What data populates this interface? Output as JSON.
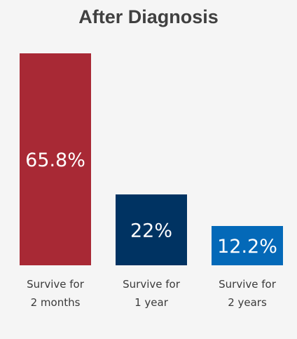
{
  "chart_data": {
    "type": "bar",
    "title": "After Diagnosis",
    "categories": [
      [
        "Survive for",
        "2 months"
      ],
      [
        "Survive for",
        "1 year"
      ],
      [
        "Survive for",
        "2 years"
      ]
    ],
    "values": [
      65.8,
      22,
      12.2
    ],
    "value_labels": [
      "65.8%",
      "22%",
      "12.2%"
    ],
    "colors": [
      "#a82935",
      "#003362",
      "#0469b8"
    ],
    "grid": false,
    "legend": "none"
  }
}
